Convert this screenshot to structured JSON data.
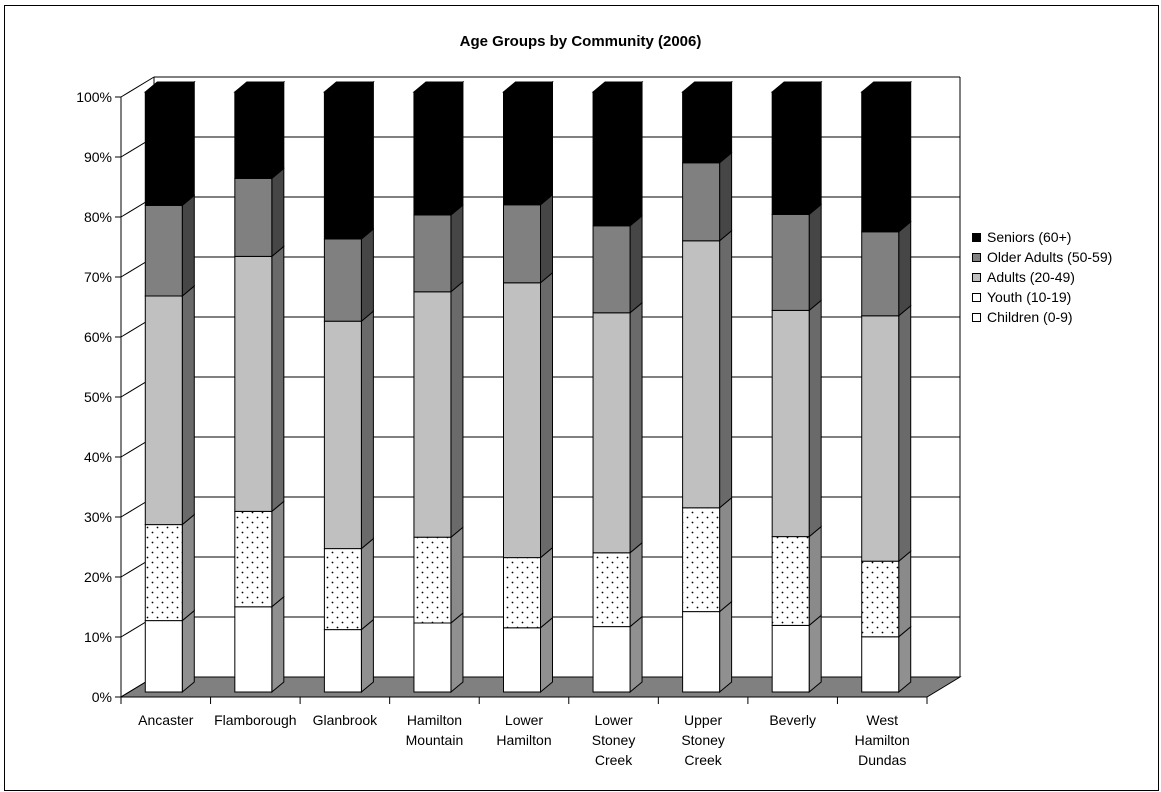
{
  "chart_data": {
    "type": "bar",
    "stacked": "percent",
    "title": "Age Groups by Community (2006)",
    "xlabel": "",
    "ylabel": "",
    "ylim": [
      0,
      100
    ],
    "yticks": [
      "0%",
      "10%",
      "20%",
      "30%",
      "40%",
      "50%",
      "60%",
      "70%",
      "80%",
      "90%",
      "100%"
    ],
    "categories": [
      [
        "Ancaster"
      ],
      [
        "Flamborough"
      ],
      [
        "Glanbrook"
      ],
      [
        "Hamilton",
        "Mountain"
      ],
      [
        "Lower",
        "Hamilton"
      ],
      [
        "Lower",
        "Stoney",
        "Creek"
      ],
      [
        "Upper",
        "Stoney",
        "Creek"
      ],
      [
        "Beverly"
      ],
      [
        "West",
        "Hamilton",
        "Dundas"
      ]
    ],
    "series": [
      {
        "name": "Children (0-9)",
        "color": "#ffffff",
        "pattern": "none",
        "values": [
          11.9,
          14.2,
          10.4,
          11.5,
          10.7,
          10.9,
          13.4,
          11.1,
          9.2
        ]
      },
      {
        "name": "Youth (10-19)",
        "color": "#ffffff",
        "pattern": "dots",
        "values": [
          16.0,
          15.9,
          13.5,
          14.3,
          11.7,
          12.3,
          17.3,
          14.8,
          12.6
        ]
      },
      {
        "name": "Adults (20-49)",
        "color": "#c0c0c0",
        "pattern": "none",
        "values": [
          38.1,
          42.5,
          37.9,
          40.9,
          45.8,
          40.0,
          44.5,
          37.7,
          40.9
        ]
      },
      {
        "name": "Older Adults (50-59)",
        "color": "#808080",
        "pattern": "none",
        "values": [
          15.1,
          13.0,
          13.7,
          12.8,
          13.0,
          14.5,
          13.0,
          16.0,
          14.0
        ]
      },
      {
        "name": "Seniors (60+)",
        "color": "#000000",
        "pattern": "none",
        "values": [
          18.9,
          14.4,
          24.5,
          20.5,
          18.8,
          22.3,
          11.8,
          20.4,
          23.3
        ]
      }
    ],
    "legend": {
      "position": "right",
      "order": [
        "Seniors (60+)",
        "Older Adults (50-59)",
        "Adults (20-49)",
        "Youth (10-19)",
        "Children (0-9)"
      ]
    },
    "grid": true,
    "style": "3d-column"
  }
}
